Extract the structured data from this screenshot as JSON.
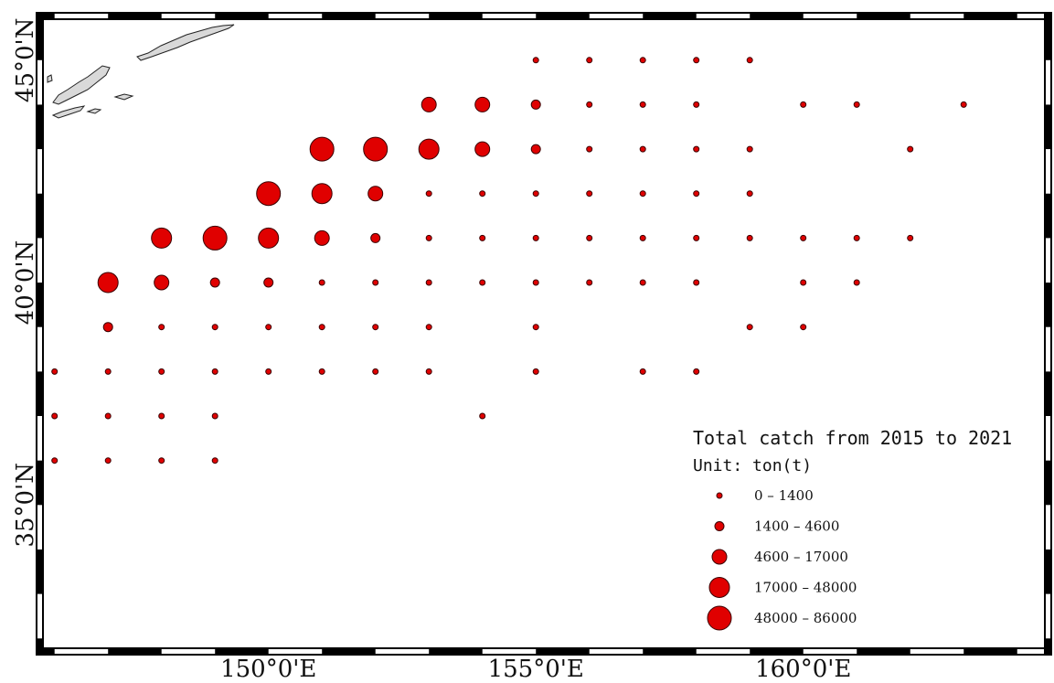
{
  "chart_data": {
    "type": "scatter",
    "title": "",
    "x_axis": {
      "range": [
        145.8,
        164.5
      ],
      "ticks": [
        {
          "value": 150,
          "label": "150°0'E"
        },
        {
          "value": 155,
          "label": "155°0'E"
        },
        {
          "value": 160,
          "label": "160°0'E"
        }
      ]
    },
    "y_axis": {
      "range": [
        31.8,
        45.9
      ],
      "ticks": [
        {
          "value": 35,
          "label": "35°0'N"
        },
        {
          "value": 40,
          "label": "40°0'N"
        },
        {
          "value": 45,
          "label": "45°0'N"
        }
      ]
    },
    "legend": {
      "title": "Total catch from 2015 to 2021",
      "unit": "Unit: ton(t)",
      "placement": "bottom-right",
      "classes": [
        {
          "range": "0 - 1400",
          "class": 1
        },
        {
          "range": "1400 - 4600",
          "class": 2
        },
        {
          "range": "4600 - 17000",
          "class": 3
        },
        {
          "range": "17000 - 48000",
          "class": 4
        },
        {
          "range": "48000 - 86000",
          "class": 5
        }
      ]
    },
    "colors": {
      "fill": "#e00000",
      "stroke": "#3a0000",
      "land": "#d9d9d9"
    },
    "points": [
      {
        "lon": 155,
        "lat": 45.0,
        "class": 1
      },
      {
        "lon": 156,
        "lat": 45.0,
        "class": 1
      },
      {
        "lon": 157,
        "lat": 45.0,
        "class": 1
      },
      {
        "lon": 158,
        "lat": 45.0,
        "class": 1
      },
      {
        "lon": 159,
        "lat": 45.0,
        "class": 1
      },
      {
        "lon": 153,
        "lat": 44.0,
        "class": 3
      },
      {
        "lon": 154,
        "lat": 44.0,
        "class": 3
      },
      {
        "lon": 155,
        "lat": 44.0,
        "class": 2
      },
      {
        "lon": 156,
        "lat": 44.0,
        "class": 1
      },
      {
        "lon": 157,
        "lat": 44.0,
        "class": 1
      },
      {
        "lon": 158,
        "lat": 44.0,
        "class": 1
      },
      {
        "lon": 160,
        "lat": 44.0,
        "class": 1
      },
      {
        "lon": 161,
        "lat": 44.0,
        "class": 1
      },
      {
        "lon": 163,
        "lat": 44.0,
        "class": 1
      },
      {
        "lon": 151,
        "lat": 43.0,
        "class": 5
      },
      {
        "lon": 152,
        "lat": 43.0,
        "class": 5
      },
      {
        "lon": 153,
        "lat": 43.0,
        "class": 4
      },
      {
        "lon": 154,
        "lat": 43.0,
        "class": 3
      },
      {
        "lon": 155,
        "lat": 43.0,
        "class": 2
      },
      {
        "lon": 156,
        "lat": 43.0,
        "class": 1
      },
      {
        "lon": 157,
        "lat": 43.0,
        "class": 1
      },
      {
        "lon": 158,
        "lat": 43.0,
        "class": 1
      },
      {
        "lon": 159,
        "lat": 43.0,
        "class": 1
      },
      {
        "lon": 162,
        "lat": 43.0,
        "class": 1
      },
      {
        "lon": 150,
        "lat": 42.0,
        "class": 5
      },
      {
        "lon": 151,
        "lat": 42.0,
        "class": 4
      },
      {
        "lon": 152,
        "lat": 42.0,
        "class": 3
      },
      {
        "lon": 153,
        "lat": 42.0,
        "class": 1
      },
      {
        "lon": 154,
        "lat": 42.0,
        "class": 1
      },
      {
        "lon": 155,
        "lat": 42.0,
        "class": 1
      },
      {
        "lon": 156,
        "lat": 42.0,
        "class": 1
      },
      {
        "lon": 157,
        "lat": 42.0,
        "class": 1
      },
      {
        "lon": 158,
        "lat": 42.0,
        "class": 1
      },
      {
        "lon": 159,
        "lat": 42.0,
        "class": 1
      },
      {
        "lon": 148,
        "lat": 41.0,
        "class": 4
      },
      {
        "lon": 149,
        "lat": 41.0,
        "class": 5
      },
      {
        "lon": 150,
        "lat": 41.0,
        "class": 4
      },
      {
        "lon": 151,
        "lat": 41.0,
        "class": 3
      },
      {
        "lon": 152,
        "lat": 41.0,
        "class": 2
      },
      {
        "lon": 153,
        "lat": 41.0,
        "class": 1
      },
      {
        "lon": 154,
        "lat": 41.0,
        "class": 1
      },
      {
        "lon": 155,
        "lat": 41.0,
        "class": 1
      },
      {
        "lon": 156,
        "lat": 41.0,
        "class": 1
      },
      {
        "lon": 157,
        "lat": 41.0,
        "class": 1
      },
      {
        "lon": 158,
        "lat": 41.0,
        "class": 1
      },
      {
        "lon": 159,
        "lat": 41.0,
        "class": 1
      },
      {
        "lon": 160,
        "lat": 41.0,
        "class": 1
      },
      {
        "lon": 161,
        "lat": 41.0,
        "class": 1
      },
      {
        "lon": 162,
        "lat": 41.0,
        "class": 1
      },
      {
        "lon": 147,
        "lat": 40.0,
        "class": 4
      },
      {
        "lon": 148,
        "lat": 40.0,
        "class": 3
      },
      {
        "lon": 149,
        "lat": 40.0,
        "class": 2
      },
      {
        "lon": 150,
        "lat": 40.0,
        "class": 2
      },
      {
        "lon": 151,
        "lat": 40.0,
        "class": 1
      },
      {
        "lon": 152,
        "lat": 40.0,
        "class": 1
      },
      {
        "lon": 153,
        "lat": 40.0,
        "class": 1
      },
      {
        "lon": 154,
        "lat": 40.0,
        "class": 1
      },
      {
        "lon": 155,
        "lat": 40.0,
        "class": 1
      },
      {
        "lon": 156,
        "lat": 40.0,
        "class": 1
      },
      {
        "lon": 157,
        "lat": 40.0,
        "class": 1
      },
      {
        "lon": 158,
        "lat": 40.0,
        "class": 1
      },
      {
        "lon": 160,
        "lat": 40.0,
        "class": 1
      },
      {
        "lon": 161,
        "lat": 40.0,
        "class": 1
      },
      {
        "lon": 147,
        "lat": 39.0,
        "class": 2
      },
      {
        "lon": 148,
        "lat": 39.0,
        "class": 1
      },
      {
        "lon": 149,
        "lat": 39.0,
        "class": 1
      },
      {
        "lon": 150,
        "lat": 39.0,
        "class": 1
      },
      {
        "lon": 151,
        "lat": 39.0,
        "class": 1
      },
      {
        "lon": 152,
        "lat": 39.0,
        "class": 1
      },
      {
        "lon": 153,
        "lat": 39.0,
        "class": 1
      },
      {
        "lon": 155,
        "lat": 39.0,
        "class": 1
      },
      {
        "lon": 159,
        "lat": 39.0,
        "class": 1
      },
      {
        "lon": 160,
        "lat": 39.0,
        "class": 1
      },
      {
        "lon": 146,
        "lat": 38.0,
        "class": 1
      },
      {
        "lon": 147,
        "lat": 38.0,
        "class": 1
      },
      {
        "lon": 148,
        "lat": 38.0,
        "class": 1
      },
      {
        "lon": 149,
        "lat": 38.0,
        "class": 1
      },
      {
        "lon": 150,
        "lat": 38.0,
        "class": 1
      },
      {
        "lon": 151,
        "lat": 38.0,
        "class": 1
      },
      {
        "lon": 152,
        "lat": 38.0,
        "class": 1
      },
      {
        "lon": 153,
        "lat": 38.0,
        "class": 1
      },
      {
        "lon": 155,
        "lat": 38.0,
        "class": 1
      },
      {
        "lon": 157,
        "lat": 38.0,
        "class": 1
      },
      {
        "lon": 158,
        "lat": 38.0,
        "class": 1
      },
      {
        "lon": 146,
        "lat": 37.0,
        "class": 1
      },
      {
        "lon": 147,
        "lat": 37.0,
        "class": 1
      },
      {
        "lon": 148,
        "lat": 37.0,
        "class": 1
      },
      {
        "lon": 149,
        "lat": 37.0,
        "class": 1
      },
      {
        "lon": 154,
        "lat": 37.0,
        "class": 1
      },
      {
        "lon": 146,
        "lat": 36.0,
        "class": 1
      },
      {
        "lon": 147,
        "lat": 36.0,
        "class": 1
      },
      {
        "lon": 148,
        "lat": 36.0,
        "class": 1
      },
      {
        "lon": 149,
        "lat": 36.0,
        "class": 1
      }
    ]
  }
}
